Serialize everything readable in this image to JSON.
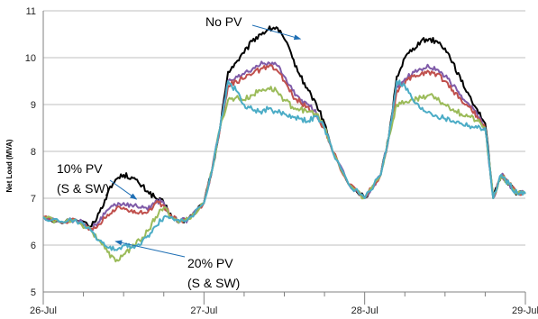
{
  "chart_data": {
    "type": "line",
    "ylabel": "Net Load (MVA)",
    "xlabel": "",
    "ylim": [
      5,
      11
    ],
    "yticks": [
      5,
      6,
      7,
      8,
      9,
      10,
      11
    ],
    "xlim": [
      0,
      3
    ],
    "xticks": [
      {
        "value": 0,
        "label": "26-Jul"
      },
      {
        "value": 1,
        "label": "27-Jul"
      },
      {
        "value": 2,
        "label": "28-Jul"
      },
      {
        "value": 3,
        "label": "29-Jul"
      }
    ],
    "minor_xticks": [
      0.25,
      0.5,
      0.75,
      1.25,
      1.5,
      1.75,
      2.25,
      2.5,
      2.75
    ],
    "grid": "horizontal",
    "legend": "none",
    "annotations": [
      {
        "text": "No PV",
        "target": [
          1.6,
          10.4
        ]
      },
      {
        "text": "10% PV",
        "text2": "(S & SW)",
        "target": [
          0.58,
          6.98
        ]
      },
      {
        "text": "20% PV",
        "text2": "(S & SW)",
        "target": [
          0.45,
          6.08
        ]
      }
    ],
    "series": [
      {
        "color": "#000000",
        "x": [
          0,
          0.1,
          0.2,
          0.3,
          0.35,
          0.4,
          0.45,
          0.5,
          0.55,
          0.6,
          0.65,
          0.7,
          0.75,
          0.8,
          0.85,
          0.9,
          1.0,
          1.05,
          1.1,
          1.15,
          1.2,
          1.25,
          1.3,
          1.35,
          1.4,
          1.45,
          1.5,
          1.55,
          1.6,
          1.65,
          1.7,
          1.75,
          1.8,
          1.9,
          2.0,
          2.1,
          2.15,
          2.2,
          2.25,
          2.3,
          2.35,
          2.4,
          2.45,
          2.5,
          2.55,
          2.6,
          2.65,
          2.7,
          2.75,
          2.8,
          2.85,
          2.9,
          2.95,
          3.0
        ],
        "y": [
          6.6,
          6.5,
          6.55,
          6.4,
          6.7,
          7.1,
          7.4,
          7.5,
          7.45,
          7.3,
          7.15,
          7.0,
          6.9,
          6.6,
          6.5,
          6.55,
          6.9,
          7.6,
          8.5,
          9.7,
          9.9,
          10.1,
          10.35,
          10.5,
          10.6,
          10.65,
          10.4,
          10.0,
          9.6,
          9.3,
          9.0,
          8.6,
          8.0,
          7.3,
          7.0,
          7.5,
          8.3,
          9.6,
          10.0,
          10.2,
          10.35,
          10.4,
          10.35,
          10.2,
          9.9,
          9.5,
          9.2,
          8.9,
          8.6,
          7.0,
          7.5,
          7.3,
          7.1,
          7.1
        ]
      },
      {
        "color": "#7F5BA8",
        "x": [
          0,
          0.1,
          0.2,
          0.3,
          0.35,
          0.4,
          0.45,
          0.5,
          0.55,
          0.6,
          0.65,
          0.7,
          0.75,
          0.8,
          0.85,
          0.9,
          1.0,
          1.05,
          1.1,
          1.15,
          1.2,
          1.25,
          1.3,
          1.35,
          1.4,
          1.45,
          1.5,
          1.55,
          1.6,
          1.65,
          1.7,
          1.75,
          1.8,
          1.9,
          2.0,
          2.1,
          2.15,
          2.2,
          2.25,
          2.3,
          2.35,
          2.4,
          2.45,
          2.5,
          2.55,
          2.6,
          2.65,
          2.7,
          2.75,
          2.8,
          2.85,
          2.9,
          2.95,
          3.0
        ],
        "y": [
          6.6,
          6.5,
          6.55,
          6.35,
          6.5,
          6.75,
          6.85,
          6.9,
          6.85,
          6.8,
          6.75,
          6.95,
          6.9,
          6.6,
          6.5,
          6.55,
          6.9,
          7.6,
          8.5,
          9.5,
          9.6,
          9.65,
          9.75,
          9.85,
          9.9,
          9.85,
          9.6,
          9.3,
          9.1,
          9.0,
          8.8,
          8.5,
          8.0,
          7.3,
          7.0,
          7.5,
          8.3,
          9.4,
          9.55,
          9.7,
          9.75,
          9.8,
          9.75,
          9.6,
          9.4,
          9.2,
          9.0,
          8.8,
          8.5,
          7.0,
          7.5,
          7.3,
          7.1,
          7.1
        ]
      },
      {
        "color": "#C0504D",
        "x": [
          0,
          0.1,
          0.2,
          0.3,
          0.35,
          0.4,
          0.45,
          0.5,
          0.55,
          0.6,
          0.65,
          0.7,
          0.75,
          0.8,
          0.85,
          0.9,
          1.0,
          1.05,
          1.1,
          1.15,
          1.2,
          1.25,
          1.3,
          1.35,
          1.4,
          1.45,
          1.5,
          1.55,
          1.6,
          1.65,
          1.7,
          1.75,
          1.8,
          1.9,
          2.0,
          2.1,
          2.15,
          2.2,
          2.25,
          2.3,
          2.35,
          2.4,
          2.45,
          2.5,
          2.55,
          2.6,
          2.65,
          2.7,
          2.75,
          2.8,
          2.85,
          2.9,
          2.95,
          3.0
        ],
        "y": [
          6.6,
          6.5,
          6.55,
          6.35,
          6.45,
          6.65,
          6.75,
          6.8,
          6.75,
          6.7,
          6.7,
          6.9,
          6.85,
          6.6,
          6.5,
          6.55,
          6.9,
          7.6,
          8.5,
          9.4,
          9.5,
          9.55,
          9.65,
          9.75,
          9.8,
          9.75,
          9.5,
          9.2,
          9.05,
          8.95,
          8.75,
          8.5,
          8.0,
          7.3,
          7.0,
          7.5,
          8.3,
          9.3,
          9.45,
          9.6,
          9.65,
          9.7,
          9.65,
          9.5,
          9.3,
          9.1,
          8.95,
          8.75,
          8.5,
          7.0,
          7.5,
          7.3,
          7.1,
          7.1
        ]
      },
      {
        "color": "#9BBB59",
        "x": [
          0,
          0.1,
          0.2,
          0.3,
          0.35,
          0.4,
          0.45,
          0.5,
          0.55,
          0.6,
          0.65,
          0.7,
          0.75,
          0.8,
          0.85,
          0.9,
          1.0,
          1.05,
          1.1,
          1.15,
          1.2,
          1.25,
          1.3,
          1.35,
          1.4,
          1.45,
          1.5,
          1.55,
          1.6,
          1.65,
          1.7,
          1.75,
          1.8,
          1.9,
          2.0,
          2.1,
          2.15,
          2.2,
          2.25,
          2.3,
          2.35,
          2.4,
          2.45,
          2.5,
          2.55,
          2.6,
          2.65,
          2.7,
          2.75,
          2.8,
          2.85,
          2.9,
          2.95,
          3.0
        ],
        "y": [
          6.6,
          6.5,
          6.55,
          6.3,
          6.1,
          5.85,
          5.65,
          5.8,
          5.95,
          6.1,
          6.3,
          6.6,
          6.8,
          6.6,
          6.5,
          6.55,
          6.9,
          7.6,
          8.5,
          9.1,
          9.15,
          9.1,
          9.2,
          9.3,
          9.35,
          9.3,
          9.1,
          8.95,
          8.9,
          8.85,
          8.8,
          8.5,
          8.0,
          7.3,
          7.0,
          7.5,
          8.3,
          9.0,
          9.05,
          9.1,
          9.15,
          9.2,
          9.1,
          9.0,
          8.9,
          8.8,
          8.75,
          8.65,
          8.5,
          7.0,
          7.5,
          7.3,
          7.1,
          7.1
        ]
      },
      {
        "color": "#4BACC6",
        "x": [
          0,
          0.1,
          0.2,
          0.3,
          0.35,
          0.4,
          0.45,
          0.5,
          0.55,
          0.6,
          0.65,
          0.7,
          0.75,
          0.8,
          0.85,
          0.9,
          1.0,
          1.05,
          1.1,
          1.15,
          1.2,
          1.25,
          1.3,
          1.35,
          1.4,
          1.45,
          1.5,
          1.55,
          1.6,
          1.65,
          1.7,
          1.75,
          1.8,
          1.9,
          2.0,
          2.1,
          2.15,
          2.2,
          2.25,
          2.3,
          2.35,
          2.4,
          2.45,
          2.5,
          2.55,
          2.6,
          2.65,
          2.7,
          2.75,
          2.8,
          2.85,
          2.9,
          2.95,
          3.0
        ],
        "y": [
          6.6,
          6.5,
          6.55,
          6.3,
          6.1,
          5.95,
          5.9,
          6.0,
          5.95,
          6.0,
          6.2,
          6.4,
          6.6,
          6.6,
          6.5,
          6.55,
          6.9,
          7.6,
          8.5,
          9.5,
          9.3,
          9.0,
          8.9,
          8.85,
          8.9,
          8.85,
          8.8,
          8.75,
          8.7,
          8.65,
          8.75,
          8.5,
          8.0,
          7.3,
          7.0,
          7.5,
          8.3,
          9.5,
          9.4,
          9.1,
          8.9,
          8.85,
          8.75,
          8.7,
          8.65,
          8.6,
          8.55,
          8.5,
          8.5,
          7.0,
          7.5,
          7.3,
          7.1,
          7.1
        ]
      }
    ]
  }
}
